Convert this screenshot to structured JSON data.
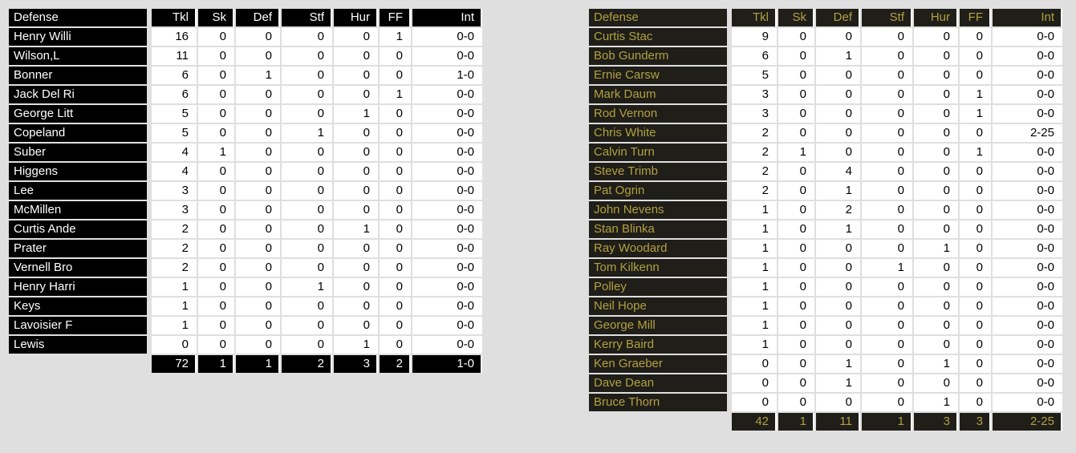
{
  "page": {
    "background": "#dfdfdf"
  },
  "tables": [
    {
      "title": "Defense",
      "theme": {
        "dark_bg": "#000000",
        "dark_fg": "#ffffff",
        "cell_bg": "#ffffff",
        "cell_fg": "#000000"
      },
      "columns": [
        "Defense",
        "Tkl",
        "Sk",
        "Def",
        "Stf",
        "Hur",
        "FF",
        "Int"
      ],
      "rows": [
        [
          "Henry Willi",
          "16",
          "0",
          "0",
          "0",
          "0",
          "1",
          "0-0"
        ],
        [
          "Wilson,L",
          "11",
          "0",
          "0",
          "0",
          "0",
          "0",
          "0-0"
        ],
        [
          "Bonner",
          "6",
          "0",
          "1",
          "0",
          "0",
          "0",
          "1-0"
        ],
        [
          "Jack Del Ri",
          "6",
          "0",
          "0",
          "0",
          "0",
          "1",
          "0-0"
        ],
        [
          "George Litt",
          "5",
          "0",
          "0",
          "0",
          "1",
          "0",
          "0-0"
        ],
        [
          "Copeland",
          "5",
          "0",
          "0",
          "1",
          "0",
          "0",
          "0-0"
        ],
        [
          "Suber",
          "4",
          "1",
          "0",
          "0",
          "0",
          "0",
          "0-0"
        ],
        [
          "Higgens",
          "4",
          "0",
          "0",
          "0",
          "0",
          "0",
          "0-0"
        ],
        [
          "Lee",
          "3",
          "0",
          "0",
          "0",
          "0",
          "0",
          "0-0"
        ],
        [
          "McMillen",
          "3",
          "0",
          "0",
          "0",
          "0",
          "0",
          "0-0"
        ],
        [
          "Curtis Ande",
          "2",
          "0",
          "0",
          "0",
          "1",
          "0",
          "0-0"
        ],
        [
          "Prater",
          "2",
          "0",
          "0",
          "0",
          "0",
          "0",
          "0-0"
        ],
        [
          "Vernell Bro",
          "2",
          "0",
          "0",
          "0",
          "0",
          "0",
          "0-0"
        ],
        [
          "Henry Harri",
          "1",
          "0",
          "0",
          "1",
          "0",
          "0",
          "0-0"
        ],
        [
          "Keys",
          "1",
          "0",
          "0",
          "0",
          "0",
          "0",
          "0-0"
        ],
        [
          "Lavoisier F",
          "1",
          "0",
          "0",
          "0",
          "0",
          "0",
          "0-0"
        ],
        [
          "Lewis",
          "0",
          "0",
          "0",
          "0",
          "1",
          "0",
          "0-0"
        ]
      ],
      "totals": [
        "72",
        "1",
        "1",
        "2",
        "3",
        "2",
        "1-0"
      ]
    },
    {
      "title": "Defense",
      "theme": {
        "dark_bg": "#1f1e19",
        "dark_fg": "#b3a140",
        "cell_bg": "#ffffff",
        "cell_fg": "#000000"
      },
      "columns": [
        "Defense",
        "Tkl",
        "Sk",
        "Def",
        "Stf",
        "Hur",
        "FF",
        "Int"
      ],
      "rows": [
        [
          "Curtis Stac",
          "9",
          "0",
          "0",
          "0",
          "0",
          "0",
          "0-0"
        ],
        [
          "Bob Gunderm",
          "6",
          "0",
          "1",
          "0",
          "0",
          "0",
          "0-0"
        ],
        [
          "Ernie Carsw",
          "5",
          "0",
          "0",
          "0",
          "0",
          "0",
          "0-0"
        ],
        [
          "Mark Daum",
          "3",
          "0",
          "0",
          "0",
          "0",
          "1",
          "0-0"
        ],
        [
          "Rod Vernon",
          "3",
          "0",
          "0",
          "0",
          "0",
          "1",
          "0-0"
        ],
        [
          "Chris White",
          "2",
          "0",
          "0",
          "0",
          "0",
          "0",
          "2-25"
        ],
        [
          "Calvin Turn",
          "2",
          "1",
          "0",
          "0",
          "0",
          "1",
          "0-0"
        ],
        [
          "Steve Trimb",
          "2",
          "0",
          "4",
          "0",
          "0",
          "0",
          "0-0"
        ],
        [
          "Pat Ogrin",
          "2",
          "0",
          "1",
          "0",
          "0",
          "0",
          "0-0"
        ],
        [
          "John Nevens",
          "1",
          "0",
          "2",
          "0",
          "0",
          "0",
          "0-0"
        ],
        [
          "Stan Blinka",
          "1",
          "0",
          "1",
          "0",
          "0",
          "0",
          "0-0"
        ],
        [
          "Ray Woodard",
          "1",
          "0",
          "0",
          "0",
          "1",
          "0",
          "0-0"
        ],
        [
          "Tom Kilkenn",
          "1",
          "0",
          "0",
          "1",
          "0",
          "0",
          "0-0"
        ],
        [
          "Polley",
          "1",
          "0",
          "0",
          "0",
          "0",
          "0",
          "0-0"
        ],
        [
          "Neil Hope",
          "1",
          "0",
          "0",
          "0",
          "0",
          "0",
          "0-0"
        ],
        [
          "George Mill",
          "1",
          "0",
          "0",
          "0",
          "0",
          "0",
          "0-0"
        ],
        [
          "Kerry Baird",
          "1",
          "0",
          "0",
          "0",
          "0",
          "0",
          "0-0"
        ],
        [
          "Ken Graeber",
          "0",
          "0",
          "1",
          "0",
          "1",
          "0",
          "0-0"
        ],
        [
          "Dave Dean",
          "0",
          "0",
          "1",
          "0",
          "0",
          "0",
          "0-0"
        ],
        [
          "Bruce Thorn",
          "0",
          "0",
          "0",
          "0",
          "1",
          "0",
          "0-0"
        ]
      ],
      "totals": [
        "42",
        "1",
        "11",
        "1",
        "3",
        "3",
        "2-25"
      ]
    }
  ]
}
